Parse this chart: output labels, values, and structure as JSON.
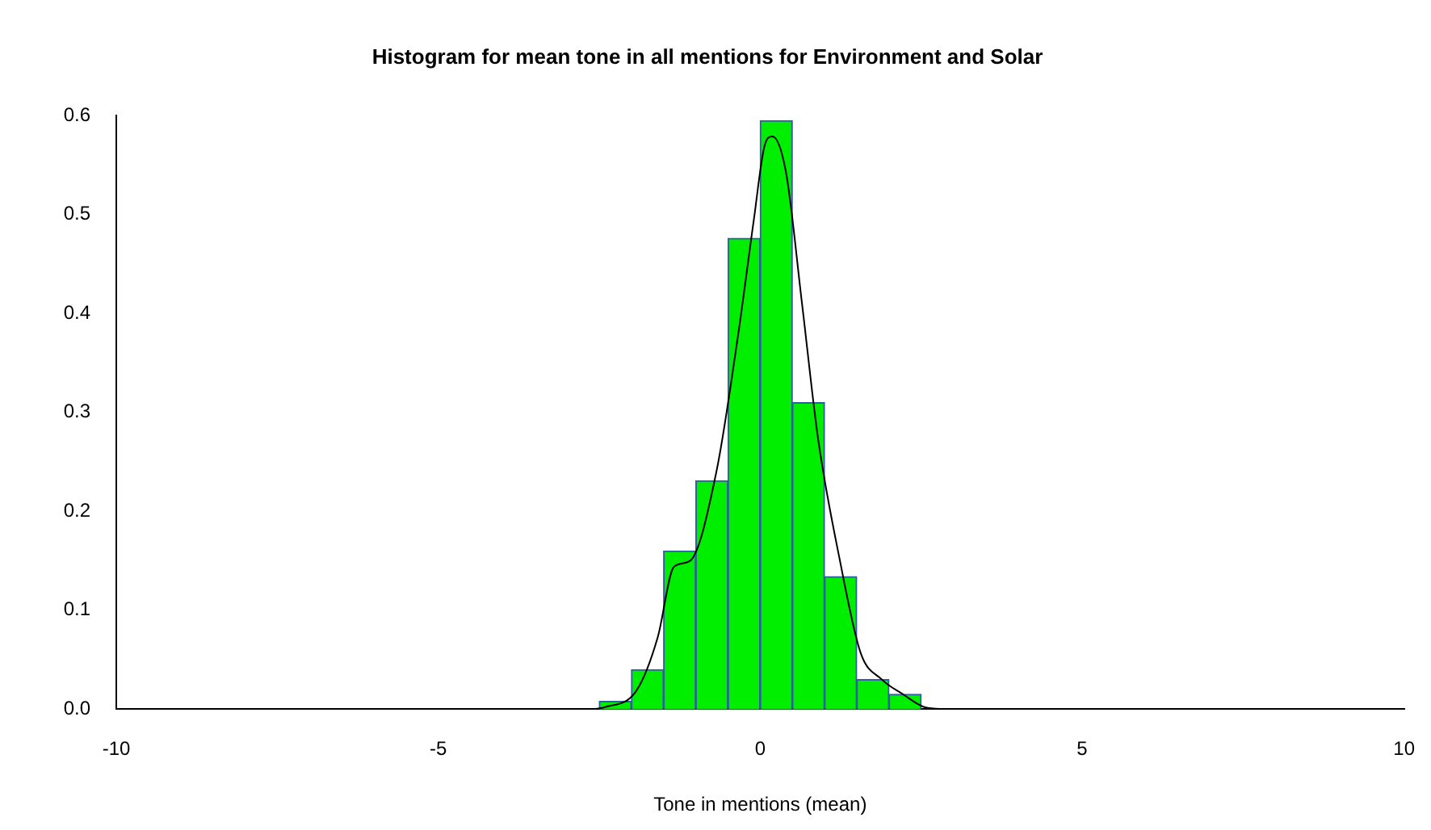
{
  "chart_data": {
    "type": "histogram",
    "title": "Histogram for mean tone in all mentions for Environment and Solar",
    "xlabel": "Tone in mentions (mean)",
    "xlim": [
      -10,
      10
    ],
    "xticks": [
      -10,
      -5,
      0,
      5,
      10
    ],
    "ylim": [
      0,
      0.6
    ],
    "yticks": [
      {
        "value": 0,
        "label": "0.0"
      },
      {
        "value": 0.1,
        "label": "0.1"
      },
      {
        "value": 0.2,
        "label": "0.2"
      },
      {
        "value": 0.3,
        "label": "0.3"
      },
      {
        "value": 0.4,
        "label": "0.4"
      },
      {
        "value": 0.5,
        "label": "0.5"
      },
      {
        "value": 0.6,
        "label": "0.6"
      }
    ],
    "series": [
      {
        "color": "#00ee00",
        "bins": [
          -2.5,
          -2,
          -1.5,
          -1,
          -0.5,
          0,
          0.5,
          1,
          1.5,
          2,
          2.5
        ],
        "values": [
          0.008,
          0.04,
          0.16,
          0.231,
          0.476,
          0.595,
          0.31,
          0.134,
          0.03,
          0.015
        ]
      },
      {
        "type": "line",
        "color": "#000000",
        "x": [
          -2.59,
          -2.42,
          -1.92,
          -1.59,
          -1.34,
          -1.09,
          -0.68,
          -0.35,
          -0.1,
          0.07,
          0.19,
          0.4,
          0.65,
          0.9,
          1.23,
          1.56,
          1.89,
          2.22,
          2.56,
          2.89
        ],
        "values": [
          0,
          0.002,
          0.019,
          0.073,
          0.144,
          0.15,
          0.24,
          0.375,
          0.494,
          0.57,
          0.579,
          0.543,
          0.41,
          0.273,
          0.153,
          0.057,
          0.03,
          0.015,
          0.002,
          0
        ]
      }
    ]
  }
}
